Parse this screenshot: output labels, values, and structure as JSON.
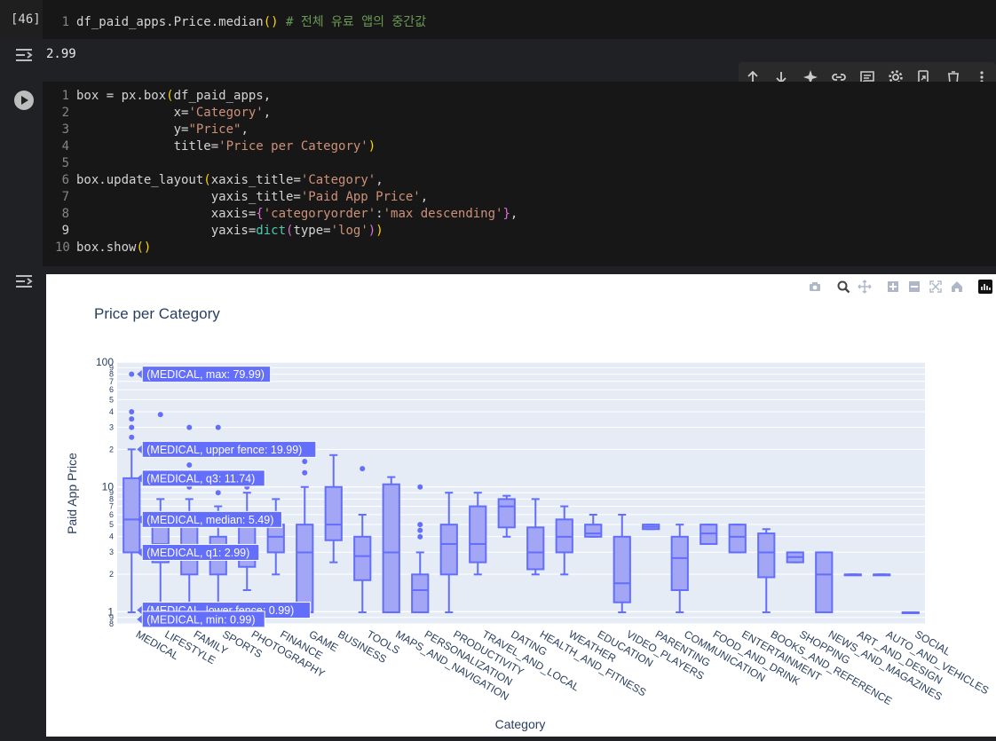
{
  "cell1": {
    "exec_count": "[46]",
    "line_no": "1",
    "code_prefix": "df_paid_apps.Price.median",
    "code_parens": "()",
    "code_comment": " # 전체 유료 앱의 중간값",
    "output": "2.99"
  },
  "toolbar": {
    "icons": [
      "arrow-up-icon",
      "arrow-down-icon",
      "sparkle-icon",
      "link-icon",
      "comment-icon",
      "gear-icon",
      "mirror-cell-icon",
      "trash-icon",
      "more-vert-icon"
    ]
  },
  "cell2": {
    "lines": [
      {
        "n": "1",
        "segs": [
          {
            "t": "box = px.box",
            "c": ""
          },
          {
            "t": "(",
            "c": "tok-br1"
          },
          {
            "t": "df_paid_apps,",
            "c": ""
          }
        ]
      },
      {
        "n": "2",
        "segs": [
          {
            "t": "             x=",
            "c": ""
          },
          {
            "t": "'Category'",
            "c": "tok-str"
          },
          {
            "t": ",",
            "c": ""
          }
        ]
      },
      {
        "n": "3",
        "segs": [
          {
            "t": "             y=",
            "c": ""
          },
          {
            "t": "\"Price\"",
            "c": "tok-str"
          },
          {
            "t": ",",
            "c": ""
          }
        ]
      },
      {
        "n": "4",
        "segs": [
          {
            "t": "             title=",
            "c": ""
          },
          {
            "t": "'Price per Category'",
            "c": "tok-str"
          },
          {
            "t": ")",
            "c": "tok-br1"
          }
        ]
      },
      {
        "n": "5",
        "segs": []
      },
      {
        "n": "6",
        "segs": [
          {
            "t": "box.update_layout",
            "c": ""
          },
          {
            "t": "(",
            "c": "tok-br1"
          },
          {
            "t": "xaxis_title=",
            "c": ""
          },
          {
            "t": "'Category'",
            "c": "tok-str"
          },
          {
            "t": ",",
            "c": ""
          }
        ]
      },
      {
        "n": "7",
        "segs": [
          {
            "t": "                  yaxis_title=",
            "c": ""
          },
          {
            "t": "'Paid App Price'",
            "c": "tok-str"
          },
          {
            "t": ",",
            "c": ""
          }
        ]
      },
      {
        "n": "8",
        "segs": [
          {
            "t": "                  xaxis=",
            "c": ""
          },
          {
            "t": "{",
            "c": "tok-br2"
          },
          {
            "t": "'categoryorder'",
            "c": "tok-str"
          },
          {
            "t": ":",
            "c": ""
          },
          {
            "t": "'max descending'",
            "c": "tok-str"
          },
          {
            "t": "}",
            "c": "tok-br2"
          },
          {
            "t": ",",
            "c": ""
          }
        ]
      },
      {
        "n": "9",
        "segs": [
          {
            "t": "                  yaxis=",
            "c": ""
          },
          {
            "t": "dict",
            "c": "tok-kw"
          },
          {
            "t": "(",
            "c": "tok-br2"
          },
          {
            "t": "type=",
            "c": ""
          },
          {
            "t": "'log'",
            "c": "tok-str"
          },
          {
            "t": ")",
            "c": "tok-br2"
          },
          {
            "t": ")",
            "c": "tok-br1"
          }
        ]
      },
      {
        "n": "10",
        "segs": [
          {
            "t": "box.show",
            "c": ""
          },
          {
            "t": "()",
            "c": "tok-br1"
          }
        ]
      }
    ]
  },
  "modebar": [
    "camera-icon",
    "zoom-icon",
    "pan-icon",
    "zoom-in-icon",
    "zoom-out-icon",
    "autoscale-icon",
    "home-icon",
    "plotly-logo-icon"
  ],
  "colors": {
    "box_fill": "#a3a5f5",
    "box_line": "#636efa",
    "plot_bg": "#e5ecf6",
    "text": "#2a3f5f"
  },
  "chart_data": {
    "type": "box",
    "title": "Price per Category",
    "xlabel": "Category",
    "ylabel": "Paid App Price",
    "yscale": "log",
    "ylim": [
      0.8,
      100
    ],
    "y_ticks": [
      {
        "v": 1,
        "label": "1",
        "major": true
      },
      {
        "v": 2,
        "label": "2",
        "major": false
      },
      {
        "v": 3,
        "label": "3",
        "major": false
      },
      {
        "v": 4,
        "label": "4",
        "major": false
      },
      {
        "v": 5,
        "label": "5",
        "major": false
      },
      {
        "v": 6,
        "label": "6",
        "major": false
      },
      {
        "v": 7,
        "label": "7",
        "major": false
      },
      {
        "v": 8,
        "label": "8",
        "major": false
      },
      {
        "v": 9,
        "label": "9",
        "major": false
      },
      {
        "v": 10,
        "label": "10",
        "major": true
      },
      {
        "v": 20,
        "label": "2",
        "major": false
      },
      {
        "v": 30,
        "label": "3",
        "major": false
      },
      {
        "v": 40,
        "label": "4",
        "major": false
      },
      {
        "v": 50,
        "label": "5",
        "major": false
      },
      {
        "v": 60,
        "label": "6",
        "major": false
      },
      {
        "v": 70,
        "label": "7",
        "major": false
      },
      {
        "v": 80,
        "label": "8",
        "major": false
      },
      {
        "v": 90,
        "label": "9",
        "major": false
      },
      {
        "v": 100,
        "label": "100",
        "major": true
      },
      {
        "v": 0.8,
        "label": "8",
        "major": false
      },
      {
        "v": 0.9,
        "label": "9",
        "major": false
      }
    ],
    "categories": [
      "MEDICAL",
      "LIFESTYLE",
      "FAMILY",
      "SPORTS",
      "PHOTOGRAPHY",
      "FINANCE",
      "GAME",
      "BUSINESS",
      "TOOLS",
      "MAPS_AND_NAVIGATION",
      "PERSONALIZATION",
      "PRODUCTIVITY",
      "TRAVEL_AND_LOCAL",
      "DATING",
      "HEALTH_AND_FITNESS",
      "WEATHER",
      "EDUCATION",
      "VIDEO_PLAYERS",
      "PARENTING",
      "COMMUNICATION",
      "FOOD_AND_DRINK",
      "ENTERTAINMENT",
      "BOOKS_AND_REFERENCE",
      "SHOPPING",
      "NEWS_AND_MAGAZINES",
      "ART_AND_DESIGN",
      "AUTO_AND_VEHICLES",
      "SOCIAL"
    ],
    "boxes": [
      {
        "min": 0.99,
        "q1": 2.99,
        "median": 5.49,
        "q3": 11.74,
        "max": 19.99,
        "outliers": [
          24.99,
          29.99,
          34.99,
          39.99,
          79.99
        ]
      },
      {
        "min": 0.99,
        "q1": 2.49,
        "median": 3.49,
        "q3": 4.99,
        "max": 7.99,
        "outliers": [
          37.99
        ]
      },
      {
        "min": 0.99,
        "q1": 1.99,
        "median": 2.99,
        "q3": 4.99,
        "max": 7.99,
        "outliers": [
          9.99,
          14.99,
          29.99
        ]
      },
      {
        "min": 0.99,
        "q1": 1.99,
        "median": 2.99,
        "q3": 3.99,
        "max": 6.99,
        "outliers": [
          8.99,
          29.99
        ]
      },
      {
        "min": 1.49,
        "q1": 2.29,
        "median": 2.99,
        "q3": 4.99,
        "max": 8.99,
        "outliers": [
          9.99
        ]
      },
      {
        "min": 1.99,
        "q1": 2.99,
        "median": 3.99,
        "q3": 4.99,
        "max": 7.99,
        "outliers": []
      },
      {
        "min": 0.99,
        "q1": 0.99,
        "median": 2.99,
        "q3": 4.99,
        "max": 9.99,
        "outliers": [
          12.99,
          15.99
        ]
      },
      {
        "min": 2.49,
        "q1": 3.74,
        "median": 4.99,
        "q3": 9.99,
        "max": 17.99,
        "outliers": []
      },
      {
        "min": 0.99,
        "q1": 1.79,
        "median": 2.79,
        "q3": 3.99,
        "max": 5.99,
        "outliers": [
          13.99
        ]
      },
      {
        "min": 0.99,
        "q1": 0.99,
        "median": 2.99,
        "q3": 10.49,
        "max": 11.99,
        "outliers": []
      },
      {
        "min": 0.99,
        "q1": 0.99,
        "median": 1.49,
        "q3": 1.99,
        "max": 2.99,
        "outliers": [
          3.99,
          4.49,
          4.99,
          9.99
        ]
      },
      {
        "min": 0.99,
        "q1": 1.99,
        "median": 3.49,
        "q3": 4.99,
        "max": 8.99,
        "outliers": []
      },
      {
        "min": 1.99,
        "q1": 2.49,
        "median": 3.49,
        "q3": 6.99,
        "max": 8.99,
        "outliers": []
      },
      {
        "min": 3.99,
        "q1": 4.74,
        "median": 6.99,
        "q3": 7.99,
        "max": 8.49,
        "outliers": []
      },
      {
        "min": 1.99,
        "q1": 2.19,
        "median": 2.99,
        "q3": 4.74,
        "max": 7.99,
        "outliers": []
      },
      {
        "min": 1.99,
        "q1": 2.99,
        "median": 3.99,
        "q3": 5.49,
        "max": 6.99,
        "outliers": []
      },
      {
        "min": 3.99,
        "q1": 3.99,
        "median": 4.24,
        "q3": 4.99,
        "max": 5.99,
        "outliers": []
      },
      {
        "min": 0.99,
        "q1": 1.19,
        "median": 1.69,
        "q3": 3.99,
        "max": 5.99,
        "outliers": []
      },
      {
        "min": 4.59,
        "q1": 4.59,
        "median": 4.79,
        "q3": 4.99,
        "max": 4.99,
        "outliers": []
      },
      {
        "min": 0.99,
        "q1": 1.49,
        "median": 2.69,
        "q3": 3.99,
        "max": 4.99,
        "outliers": []
      },
      {
        "min": 3.49,
        "q1": 3.49,
        "median": 4.24,
        "q3": 4.99,
        "max": 4.99,
        "outliers": []
      },
      {
        "min": 2.99,
        "q1": 2.99,
        "median": 3.99,
        "q3": 4.99,
        "max": 4.99,
        "outliers": []
      },
      {
        "min": 0.99,
        "q1": 1.89,
        "median": 2.99,
        "q3": 4.24,
        "max": 4.59,
        "outliers": []
      },
      {
        "min": 2.49,
        "q1": 2.49,
        "median": 2.74,
        "q3": 2.99,
        "max": 2.99,
        "outliers": []
      },
      {
        "min": 0.99,
        "q1": 0.99,
        "median": 1.99,
        "q3": 2.99,
        "max": 2.99,
        "outliers": []
      },
      {
        "min": 1.99,
        "q1": 1.99,
        "median": 1.99,
        "q3": 1.99,
        "max": 1.99,
        "outliers": []
      },
      {
        "min": 1.99,
        "q1": 1.99,
        "median": 1.99,
        "q3": 1.99,
        "max": 1.99,
        "outliers": []
      },
      {
        "min": 0.99,
        "q1": 0.99,
        "median": 0.99,
        "q3": 0.99,
        "max": 0.99,
        "outliers": []
      }
    ],
    "hover_labels": [
      {
        "text": "(MEDICAL, max: 79.99)",
        "v": 79.99
      },
      {
        "text": "(MEDICAL, upper fence: 19.99)",
        "v": 19.99
      },
      {
        "text": "(MEDICAL, q3: 11.74)",
        "v": 11.74
      },
      {
        "text": "(MEDICAL, median: 5.49)",
        "v": 5.49
      },
      {
        "text": "(MEDICAL, q1: 2.99)",
        "v": 2.99
      },
      {
        "text": "(MEDICAL, lower fence: 0.99)",
        "v": 1.03
      },
      {
        "text": "(MEDICAL, min: 0.99)",
        "v": 0.87
      }
    ]
  }
}
